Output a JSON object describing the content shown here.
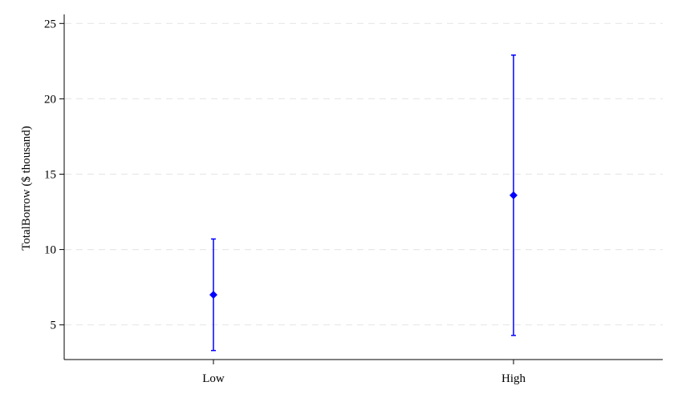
{
  "chart_data": {
    "type": "scatter",
    "subtype": "point-with-error-bars",
    "title": "",
    "xlabel": "",
    "ylabel": "TotalBorrow ($ thousand)",
    "categories": [
      "Low",
      "High"
    ],
    "series": [
      {
        "points": [
          {
            "category": "Low",
            "value": 7.0,
            "lower": 3.3,
            "upper": 10.7
          },
          {
            "category": "High",
            "value": 13.6,
            "lower": 4.3,
            "upper": 22.9
          }
        ]
      }
    ],
    "yticks": [
      5,
      10,
      15,
      20,
      25
    ],
    "ylim": [
      2.7,
      25.6
    ],
    "grid": "horizontal dashed",
    "legend": "none",
    "colors": {
      "series": "#0000ff",
      "axis": "#000000",
      "grid": "#e8e8e8"
    }
  }
}
